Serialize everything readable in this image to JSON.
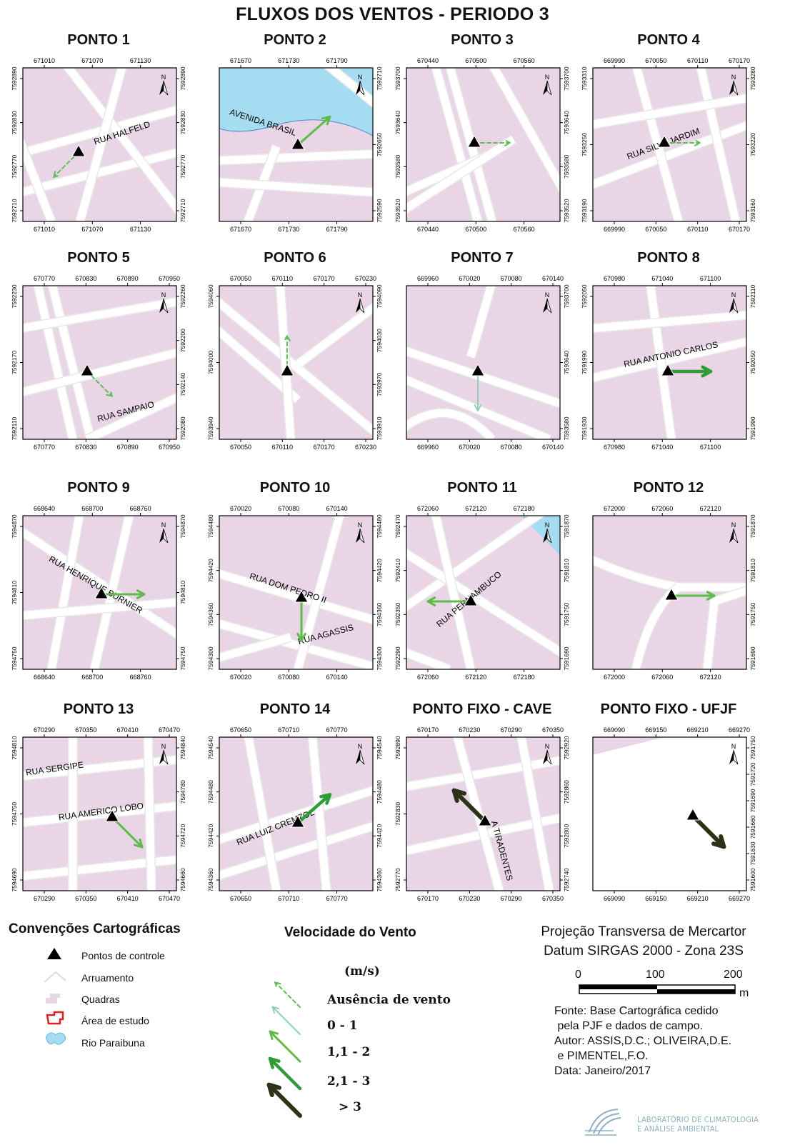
{
  "title": "FLUXOS DOS VENTOS - PERIODO 3",
  "colors": {
    "block": "#e9d5e6",
    "street": "#ffffff",
    "river": "#a6dcf2",
    "cat0": "#5fbf56",
    "cat1": "#92cfb8",
    "cat2": "#5dbb47",
    "cat3": "#2f9c37",
    "cat4": "#2b3319"
  },
  "panels": [
    {
      "name": "PONTO 1",
      "xtop": [
        "671010",
        "671070",
        "671130"
      ],
      "xbot": [
        "671010",
        "671070",
        "671130"
      ],
      "yleft": [
        "7592890",
        "7592830",
        "7592770",
        "7592710"
      ],
      "yright": [
        "7592890",
        "7592830",
        "7592770",
        "7592710"
      ],
      "street": "RUA HALFELD",
      "wind": "Ausência de vento",
      "dir": "SW"
    },
    {
      "name": "PONTO 2",
      "xtop": [
        "671670",
        "671730",
        "671790"
      ],
      "xbot": [
        "671670",
        "671730",
        "671790"
      ],
      "yleft": [],
      "yright": [
        "7592710",
        "7592650",
        "7592590"
      ],
      "street": "AVENIDA BRASIL",
      "wind": "1,1 - 2",
      "dir": "NE"
    },
    {
      "name": "PONTO 3",
      "xtop": [
        "670440",
        "670500",
        "670560"
      ],
      "xbot": [
        "670440",
        "670500",
        "670560"
      ],
      "yleft": [
        "7593700",
        "7593640",
        "7593580",
        "7593520"
      ],
      "yright": [
        "7593700",
        "7593640",
        "7593580",
        "7593520"
      ],
      "street": "",
      "wind": "Ausência de vento",
      "dir": "E"
    },
    {
      "name": "PONTO 4",
      "xtop": [
        "669990",
        "670050",
        "670110",
        "670170"
      ],
      "xbot": [
        "669990",
        "670050",
        "670110",
        "670170"
      ],
      "yleft": [
        "7593310",
        "7593250",
        "7593190"
      ],
      "yright": [
        "7593280",
        "7593220",
        "7593160"
      ],
      "street": "RUA SILVA JARDIM",
      "wind": "Ausência de vento",
      "dir": "E"
    },
    {
      "name": "PONTO 5",
      "xtop": [
        "670770",
        "670830",
        "670890",
        "670950"
      ],
      "xbot": [
        "670770",
        "670830",
        "670890",
        "670950"
      ],
      "yleft": [
        "7592230",
        "7592170",
        "7592110"
      ],
      "yright": [
        "7592260",
        "7592200",
        "7592140",
        "7592080"
      ],
      "street": "RUA SAMPAIO",
      "wind": "Ausência de vento",
      "dir": "SE"
    },
    {
      "name": "PONTO 6",
      "xtop": [
        "670050",
        "670110",
        "670170",
        "670230"
      ],
      "xbot": [
        "670050",
        "670110",
        "670170",
        "670230"
      ],
      "yleft": [
        "7594060",
        "7594000",
        "7593940"
      ],
      "yright": [
        "7594090",
        "7594030",
        "7593970",
        "7593910"
      ],
      "street": "",
      "wind": "Ausência de vento",
      "dir": "N"
    },
    {
      "name": "PONTO 7",
      "xtop": [
        "669960",
        "670020",
        "670080",
        "670140"
      ],
      "xbot": [
        "669960",
        "670020",
        "670080",
        "670140"
      ],
      "yleft": [],
      "yright": [
        "7593700",
        "7593640",
        "7593580"
      ],
      "street": "",
      "wind": "0 - 1",
      "dir": "S"
    },
    {
      "name": "PONTO 8",
      "xtop": [
        "670980",
        "671040",
        "671100"
      ],
      "xbot": [
        "670980",
        "671040",
        "671100"
      ],
      "yleft": [
        "7592050",
        "7591990",
        "7591930"
      ],
      "yright": [
        "7592110",
        "7592050",
        "7591990"
      ],
      "street": "RUA ANTONIO CARLOS",
      "wind": "2,1 - 3",
      "dir": "E"
    },
    {
      "name": "PONTO 9",
      "xtop": [
        "668640",
        "668700",
        "668760"
      ],
      "xbot": [
        "668640",
        "668700",
        "668760"
      ],
      "yleft": [
        "7594870",
        "7594810",
        "7594750"
      ],
      "yright": [
        "7594870",
        "7594810",
        "7594750"
      ],
      "street": "RUA HENRIQUE BURNIER",
      "wind": "1,1 - 2",
      "dir": "E"
    },
    {
      "name": "PONTO 10",
      "xtop": [
        "670020",
        "670080",
        "670140"
      ],
      "xbot": [
        "670020",
        "670080",
        "670140"
      ],
      "yleft": [
        "7594480",
        "7594420",
        "7594360",
        "7594300"
      ],
      "yright": [
        "7594480",
        "7594420",
        "7594360",
        "7594300"
      ],
      "street": "RUA DOM PEDRO II",
      "street2": "RUA AGASSIS",
      "wind": "1,1 - 2",
      "dir": "S"
    },
    {
      "name": "PONTO 11",
      "xtop": [
        "672060",
        "672120",
        "672180"
      ],
      "xbot": [
        "672060",
        "672120",
        "672180"
      ],
      "yleft": [
        "7592470",
        "7592410",
        "7592350",
        "7592290"
      ],
      "yright": [
        "7591870",
        "7591810",
        "7591750",
        "7591690"
      ],
      "street": "RUA PERNAMBUCO",
      "wind": "1,1 - 2",
      "dir": "W"
    },
    {
      "name": "PONTO 12",
      "xtop": [
        "672000",
        "672060",
        "672120"
      ],
      "xbot": [
        "672000",
        "672060",
        "672120"
      ],
      "yleft": [],
      "yright": [
        "7591870",
        "7591810",
        "7591750",
        "7591690"
      ],
      "street": "",
      "wind": "1,1 - 2",
      "dir": "E"
    },
    {
      "name": "PONTO 13",
      "xtop": [
        "670290",
        "670350",
        "670410",
        "670470"
      ],
      "xbot": [
        "670290",
        "670350",
        "670410",
        "670470"
      ],
      "yleft": [
        "7594810",
        "7594750",
        "7594690"
      ],
      "yright": [
        "7594840",
        "7594780",
        "7594720",
        "7594660"
      ],
      "street": "RUA SERGIPE",
      "street2": "RUA AMERICO LOBO",
      "wind": "1,1 - 2",
      "dir": "SE"
    },
    {
      "name": "PONTO 14",
      "xtop": [
        "670650",
        "670710",
        "670770"
      ],
      "xbot": [
        "670650",
        "670710",
        "670770"
      ],
      "yleft": [
        "7594540",
        "7594480",
        "7594420",
        "7594360"
      ],
      "yright": [
        "7594540",
        "7594480",
        "7594420",
        "7594360"
      ],
      "street": "RUA LUIZ CREMZOL",
      "wind": "2,1 - 3",
      "dir": "NE"
    },
    {
      "name": "PONTO FIXO - CAVE",
      "xtop": [
        "670170",
        "670230",
        "670290",
        "670350"
      ],
      "xbot": [
        "670170",
        "670230",
        "670290",
        "670350"
      ],
      "yleft": [
        "7592890",
        "7592830",
        "7592770"
      ],
      "yright": [
        "7592920",
        "7592860",
        "7592800",
        "7592740"
      ],
      "street": "A TIRADENTES",
      "wind": "> 3",
      "dir": "NW"
    },
    {
      "name": "PONTO FIXO - UFJF",
      "xtop": [
        "669090",
        "669150",
        "669210",
        "669270"
      ],
      "xbot": [
        "669090",
        "669150",
        "669210",
        "669270"
      ],
      "yleft": [],
      "yright": [
        "7591750",
        "7591720",
        "7591690",
        "7591660",
        "7591630",
        "7591600"
      ],
      "street": "",
      "wind": "> 3",
      "dir": "SE"
    }
  ],
  "conventions": {
    "title": "Convenções Cartográficas",
    "items": [
      "Pontos de controle",
      "Arruamento",
      "Quadras",
      "Área de estudo",
      "Rio Paraibuna"
    ]
  },
  "speed": {
    "title": "Velocidade do Vento",
    "unit": "(m/s)",
    "classes": [
      "Ausência de vento",
      "0 - 1",
      "1,1 - 2",
      "2,1 - 3",
      "> 3"
    ]
  },
  "projection": {
    "line1": "Projeção Transversa de Mercartor",
    "line2": "Datum SIRGAS 2000 - Zona 23S",
    "scale": [
      "0",
      "100",
      "200"
    ],
    "scale_unit": "m"
  },
  "credits": [
    "Fonte: Base Cartográfica cedido",
    " pela PJF e dados de campo.",
    "Autor: ASSIS,D.C.; OLIVEIRA,D.E.",
    " e PIMENTEL,F.O.",
    "Data: Janeiro/2017"
  ],
  "lab": [
    "LABORATÓRIO DE CLIMATOLOGIA",
    "E ANÁLISE AMBIENTAL"
  ],
  "north_label": "N"
}
